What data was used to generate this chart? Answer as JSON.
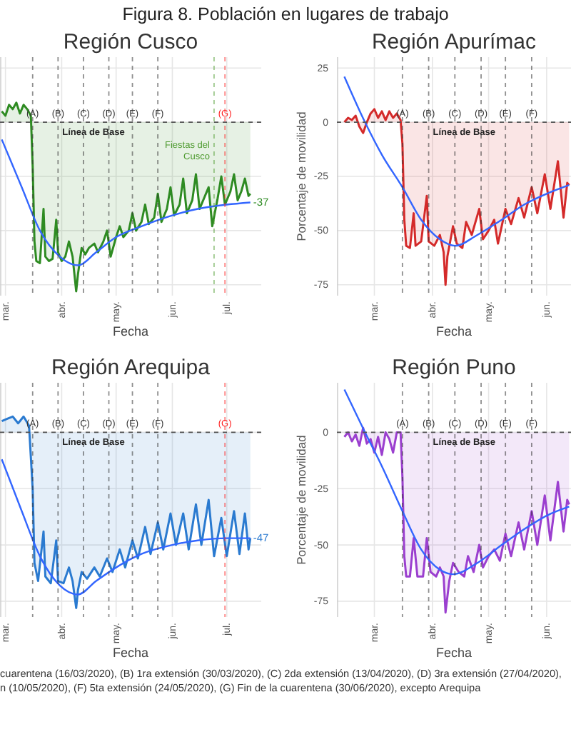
{
  "chart_data": [
    {
      "type": "other",
      "title": "Figura 8. Población en lugares de trabajo",
      "annotations": [
        "cuarentena (16/03/2020), (B) 1ra extensión (30/03/2020), (C) 2da extensión (13/04/2020), (D) 3ra extensión (27/04/2020),",
        "n (10/05/2020), (F) 5ta extensión (24/05/2020), (G) Fin de la cuarentena (30/06/2020), excepto Arequipa"
      ]
    },
    {
      "type": "area",
      "title": "Región Cusco",
      "xlabel": "Fecha",
      "xlim": [
        "2020-02-27",
        "2020-07-20"
      ],
      "ylim": [
        -80,
        30
      ],
      "yticks": [
        25,
        0,
        -25,
        -50,
        -75
      ],
      "tick_labels": "x",
      "grid": true,
      "xticks": [
        {
          "value": "2020-03-01",
          "label": "mar."
        },
        {
          "value": "2020-04-01",
          "label": "abr."
        },
        {
          "value": "2020-05-01",
          "label": "may."
        },
        {
          "value": "2020-06-01",
          "label": "jun."
        },
        {
          "value": "2020-07-01",
          "label": "jul."
        }
      ],
      "series": [
        {
          "type": "area",
          "color": "#2e8b22",
          "x": [
            "2020-02-28",
            "2020-03-01",
            "2020-03-03",
            "2020-03-05",
            "2020-03-07",
            "2020-03-09",
            "2020-03-11",
            "2020-03-13",
            "2020-03-15",
            "2020-03-16",
            "2020-03-17",
            "2020-03-18",
            "2020-03-20",
            "2020-03-22",
            "2020-03-23",
            "2020-03-25",
            "2020-03-27",
            "2020-03-29",
            "2020-03-30",
            "2020-04-01",
            "2020-04-03",
            "2020-04-05",
            "2020-04-07",
            "2020-04-09",
            "2020-04-10",
            "2020-04-12",
            "2020-04-14",
            "2020-04-16",
            "2020-04-19",
            "2020-04-21",
            "2020-04-24",
            "2020-04-26",
            "2020-04-28",
            "2020-05-01",
            "2020-05-03",
            "2020-05-05",
            "2020-05-08",
            "2020-05-10",
            "2020-05-12",
            "2020-05-15",
            "2020-05-17",
            "2020-05-19",
            "2020-05-22",
            "2020-05-24",
            "2020-05-26",
            "2020-05-29",
            "2020-05-31",
            "2020-06-02",
            "2020-06-05",
            "2020-06-07",
            "2020-06-09",
            "2020-06-12",
            "2020-06-14",
            "2020-06-16",
            "2020-06-19",
            "2020-06-21",
            "2020-06-23",
            "2020-06-26",
            "2020-06-28",
            "2020-06-30",
            "2020-07-03",
            "2020-07-05",
            "2020-07-07",
            "2020-07-09",
            "2020-07-11",
            "2020-07-13",
            "2020-07-14"
          ],
          "values": [
            5,
            3,
            8,
            6,
            9,
            4,
            8,
            6,
            3,
            -20,
            -55,
            -64,
            -65,
            -40,
            -62,
            -64,
            -63,
            -45,
            -60,
            -64,
            -62,
            -55,
            -62,
            -78,
            -70,
            -58,
            -61,
            -58,
            -56,
            -60,
            -55,
            -50,
            -62,
            -53,
            -48,
            -53,
            -50,
            -42,
            -50,
            -46,
            -38,
            -47,
            -44,
            -33,
            -46,
            -40,
            -30,
            -43,
            -38,
            -26,
            -42,
            -36,
            -24,
            -40,
            -34,
            -30,
            -48,
            -35,
            -25,
            -38,
            -32,
            -24,
            -36,
            -32,
            -26,
            -34,
            -33
          ]
        },
        {
          "type": "line",
          "color": "#3366ff",
          "x": [
            "2020-02-28",
            "2020-03-10",
            "2020-03-20",
            "2020-03-31",
            "2020-04-10",
            "2020-04-20",
            "2020-05-01",
            "2020-05-15",
            "2020-06-01",
            "2020-06-15",
            "2020-07-01",
            "2020-07-14"
          ],
          "values": [
            -8,
            -30,
            -50,
            -62,
            -66,
            -60,
            -53,
            -48,
            -43,
            -40,
            -38,
            -37
          ]
        }
      ],
      "ref_lines": [
        {
          "axis": "y",
          "value": 0,
          "label": "Línea de Base",
          "color": "#555555",
          "line_style": "dashed"
        },
        {
          "axis": "x",
          "value": "2020-03-16",
          "label": "(A)",
          "color": "#333333",
          "line_style": "dashed"
        },
        {
          "axis": "x",
          "value": "2020-03-30",
          "label": "(B)",
          "color": "#333333",
          "line_style": "dashed"
        },
        {
          "axis": "x",
          "value": "2020-04-13",
          "label": "(C)",
          "color": "#333333",
          "line_style": "dashed"
        },
        {
          "axis": "x",
          "value": "2020-04-27",
          "label": "(D)",
          "color": "#333333",
          "line_style": "dashed"
        },
        {
          "axis": "x",
          "value": "2020-05-10",
          "label": "(E)",
          "color": "#333333",
          "line_style": "dashed"
        },
        {
          "axis": "x",
          "value": "2020-05-24",
          "label": "(F)",
          "color": "#333333",
          "line_style": "dashed"
        },
        {
          "axis": "x",
          "value": "2020-06-24",
          "label": "Fiestas del Cusco",
          "color": "#4d9a2e",
          "line_style": "dashed"
        },
        {
          "axis": "x",
          "value": "2020-06-30",
          "label": "(G)",
          "color": "#ff2020",
          "line_style": "dashed"
        }
      ],
      "annotations": [
        {
          "text": "-37",
          "x": "2020-07-14",
          "y": -37
        }
      ]
    },
    {
      "type": "area",
      "title": "Región Apurímac",
      "xlabel": "Fecha",
      "ylabel": "Porcentaje de movilidad",
      "xlim": [
        "2020-02-10",
        "2020-06-14"
      ],
      "ylim": [
        -80,
        30
      ],
      "yticks": [
        25,
        0,
        -25,
        -50,
        -75
      ],
      "grid": true,
      "xticks": [
        {
          "value": "2020-03-01",
          "label": "mar."
        },
        {
          "value": "2020-04-01",
          "label": "abr."
        },
        {
          "value": "2020-05-01",
          "label": "may."
        },
        {
          "value": "2020-06-01",
          "label": "jun."
        }
      ],
      "series": [
        {
          "type": "area",
          "color": "#d42a2a",
          "x": [
            "2020-02-14",
            "2020-02-16",
            "2020-02-18",
            "2020-02-20",
            "2020-02-22",
            "2020-02-24",
            "2020-02-26",
            "2020-02-28",
            "2020-03-01",
            "2020-03-03",
            "2020-03-05",
            "2020-03-07",
            "2020-03-09",
            "2020-03-11",
            "2020-03-13",
            "2020-03-15",
            "2020-03-16",
            "2020-03-17",
            "2020-03-18",
            "2020-03-20",
            "2020-03-22",
            "2020-03-23",
            "2020-03-26",
            "2020-03-29",
            "2020-03-30",
            "2020-04-02",
            "2020-04-05",
            "2020-04-07",
            "2020-04-08",
            "2020-04-09",
            "2020-04-12",
            "2020-04-14",
            "2020-04-17",
            "2020-04-19",
            "2020-04-22",
            "2020-04-26",
            "2020-04-28",
            "2020-05-01",
            "2020-05-04",
            "2020-05-06",
            "2020-05-10",
            "2020-05-13",
            "2020-05-17",
            "2020-05-20",
            "2020-05-24",
            "2020-05-27",
            "2020-05-31",
            "2020-06-03",
            "2020-06-07",
            "2020-06-10",
            "2020-06-12",
            "2020-06-13"
          ],
          "values": [
            0,
            2,
            1,
            3,
            -2,
            -5,
            0,
            4,
            6,
            2,
            5,
            1,
            5,
            2,
            4,
            1,
            -10,
            -45,
            -57,
            -58,
            -42,
            -57,
            -55,
            -34,
            -55,
            -57,
            -52,
            -60,
            -75,
            -62,
            -48,
            -56,
            -58,
            -46,
            -52,
            -40,
            -54,
            -50,
            -45,
            -56,
            -40,
            -47,
            -35,
            -44,
            -30,
            -42,
            -24,
            -40,
            -18,
            -44,
            -28,
            -29
          ]
        },
        {
          "type": "line",
          "color": "#3366ff",
          "x": [
            "2020-02-14",
            "2020-02-25",
            "2020-03-05",
            "2020-03-16",
            "2020-03-26",
            "2020-04-05",
            "2020-04-13",
            "2020-04-25",
            "2020-05-08",
            "2020-05-20",
            "2020-06-01",
            "2020-06-13"
          ],
          "values": [
            21,
            0,
            -15,
            -30,
            -45,
            -54,
            -57,
            -52,
            -45,
            -38,
            -33,
            -29
          ]
        }
      ],
      "ref_lines": [
        {
          "axis": "y",
          "value": 0,
          "label": "Línea de Base",
          "color": "#555555",
          "line_style": "dashed"
        },
        {
          "axis": "x",
          "value": "2020-03-16",
          "label": "(A)",
          "color": "#333333",
          "line_style": "dashed"
        },
        {
          "axis": "x",
          "value": "2020-03-30",
          "label": "(B)",
          "color": "#333333",
          "line_style": "dashed"
        },
        {
          "axis": "x",
          "value": "2020-04-13",
          "label": "(C)",
          "color": "#333333",
          "line_style": "dashed"
        },
        {
          "axis": "x",
          "value": "2020-04-27",
          "label": "(D)",
          "color": "#333333",
          "line_style": "dashed"
        },
        {
          "axis": "x",
          "value": "2020-05-10",
          "label": "(E)",
          "color": "#333333",
          "line_style": "dashed"
        },
        {
          "axis": "x",
          "value": "2020-05-24",
          "label": "(F)",
          "color": "#333333",
          "line_style": "dashed"
        }
      ]
    },
    {
      "type": "area",
      "title": "Región Arequipa",
      "xlabel": "Fecha",
      "xlim": [
        "2020-02-27",
        "2020-07-20"
      ],
      "ylim": [
        -82,
        22
      ],
      "yticks": [
        0,
        -25,
        -50,
        -75
      ],
      "tick_labels": "x",
      "grid": true,
      "xticks": [
        {
          "value": "2020-03-01",
          "label": "mar."
        },
        {
          "value": "2020-04-01",
          "label": "abr."
        },
        {
          "value": "2020-05-01",
          "label": "may."
        },
        {
          "value": "2020-06-01",
          "label": "jun."
        },
        {
          "value": "2020-07-01",
          "label": "jul."
        }
      ],
      "series": [
        {
          "type": "area",
          "color": "#2a7ad0",
          "x": [
            "2020-02-28",
            "2020-03-02",
            "2020-03-05",
            "2020-03-08",
            "2020-03-11",
            "2020-03-14",
            "2020-03-16",
            "2020-03-17",
            "2020-03-19",
            "2020-03-22",
            "2020-03-23",
            "2020-03-26",
            "2020-03-29",
            "2020-03-30",
            "2020-04-02",
            "2020-04-05",
            "2020-04-07",
            "2020-04-09",
            "2020-04-10",
            "2020-04-12",
            "2020-04-15",
            "2020-04-19",
            "2020-04-22",
            "2020-04-26",
            "2020-04-29",
            "2020-05-03",
            "2020-05-06",
            "2020-05-10",
            "2020-05-13",
            "2020-05-17",
            "2020-05-20",
            "2020-05-24",
            "2020-05-27",
            "2020-05-31",
            "2020-06-03",
            "2020-06-07",
            "2020-06-10",
            "2020-06-14",
            "2020-06-17",
            "2020-06-21",
            "2020-06-24",
            "2020-06-28",
            "2020-07-01",
            "2020-07-05",
            "2020-07-08",
            "2020-07-11",
            "2020-07-13",
            "2020-07-14"
          ],
          "values": [
            5,
            6,
            7,
            4,
            7,
            3,
            -25,
            -58,
            -66,
            -44,
            -64,
            -67,
            -48,
            -66,
            -67,
            -60,
            -66,
            -78,
            -70,
            -62,
            -65,
            -60,
            -64,
            -56,
            -62,
            -52,
            -60,
            -48,
            -56,
            -42,
            -54,
            -40,
            -52,
            -36,
            -50,
            -36,
            -52,
            -32,
            -50,
            -30,
            -55,
            -38,
            -55,
            -35,
            -54,
            -36,
            -52,
            -47
          ]
        },
        {
          "type": "line",
          "color": "#3366ff",
          "x": [
            "2020-02-28",
            "2020-03-10",
            "2020-03-20",
            "2020-03-31",
            "2020-04-10",
            "2020-04-20",
            "2020-05-01",
            "2020-05-15",
            "2020-06-01",
            "2020-06-15",
            "2020-07-01",
            "2020-07-14"
          ],
          "values": [
            -12,
            -35,
            -55,
            -68,
            -72,
            -66,
            -60,
            -54,
            -50,
            -48,
            -47,
            -47
          ]
        }
      ],
      "ref_lines": [
        {
          "axis": "y",
          "value": 0,
          "label": "Línea de Base",
          "color": "#555555",
          "line_style": "dashed"
        },
        {
          "axis": "x",
          "value": "2020-03-16",
          "label": "(A)",
          "color": "#333333",
          "line_style": "dashed"
        },
        {
          "axis": "x",
          "value": "2020-03-30",
          "label": "(B)",
          "color": "#333333",
          "line_style": "dashed"
        },
        {
          "axis": "x",
          "value": "2020-04-13",
          "label": "(C)",
          "color": "#333333",
          "line_style": "dashed"
        },
        {
          "axis": "x",
          "value": "2020-04-27",
          "label": "(D)",
          "color": "#333333",
          "line_style": "dashed"
        },
        {
          "axis": "x",
          "value": "2020-05-10",
          "label": "(E)",
          "color": "#333333",
          "line_style": "dashed"
        },
        {
          "axis": "x",
          "value": "2020-05-24",
          "label": "(F)",
          "color": "#333333",
          "line_style": "dashed"
        },
        {
          "axis": "x",
          "value": "2020-06-30",
          "label": "(G)",
          "color": "#ff2020",
          "line_style": "dashed"
        }
      ],
      "annotations": [
        {
          "text": "-47",
          "x": "2020-07-14",
          "y": -47
        }
      ]
    },
    {
      "type": "area",
      "title": "Región Puno",
      "xlabel": "Fecha",
      "ylabel": "Porcentaje de movilidad",
      "xlim": [
        "2020-02-10",
        "2020-06-14"
      ],
      "ylim": [
        -82,
        22
      ],
      "yticks": [
        0,
        -25,
        -50,
        -75
      ],
      "grid": true,
      "xticks": [
        {
          "value": "2020-03-01",
          "label": "mar."
        },
        {
          "value": "2020-04-01",
          "label": "abr."
        },
        {
          "value": "2020-05-01",
          "label": "may."
        },
        {
          "value": "2020-06-01",
          "label": "jun."
        }
      ],
      "series": [
        {
          "type": "area",
          "color": "#9b3fcf",
          "x": [
            "2020-02-14",
            "2020-02-16",
            "2020-02-18",
            "2020-02-20",
            "2020-02-22",
            "2020-02-24",
            "2020-02-26",
            "2020-02-28",
            "2020-03-01",
            "2020-03-03",
            "2020-03-05",
            "2020-03-07",
            "2020-03-09",
            "2020-03-11",
            "2020-03-13",
            "2020-03-15",
            "2020-03-16",
            "2020-03-17",
            "2020-03-18",
            "2020-03-20",
            "2020-03-22",
            "2020-03-24",
            "2020-03-27",
            "2020-03-29",
            "2020-03-31",
            "2020-04-03",
            "2020-04-05",
            "2020-04-07",
            "2020-04-08",
            "2020-04-10",
            "2020-04-12",
            "2020-04-15",
            "2020-04-18",
            "2020-04-20",
            "2020-04-23",
            "2020-04-26",
            "2020-04-28",
            "2020-05-01",
            "2020-05-04",
            "2020-05-07",
            "2020-05-10",
            "2020-05-13",
            "2020-05-17",
            "2020-05-20",
            "2020-05-24",
            "2020-05-27",
            "2020-05-31",
            "2020-06-03",
            "2020-06-07",
            "2020-06-10",
            "2020-06-12",
            "2020-06-13"
          ],
          "values": [
            -2,
            0,
            -4,
            -1,
            -6,
            2,
            -5,
            -3,
            -9,
            -2,
            -10,
            0,
            -3,
            -9,
            0,
            0,
            -20,
            -55,
            -64,
            -64,
            -47,
            -64,
            -64,
            -47,
            -62,
            -64,
            -60,
            -64,
            -80,
            -66,
            -58,
            -62,
            -64,
            -55,
            -62,
            -50,
            -60,
            -55,
            -52,
            -57,
            -45,
            -55,
            -40,
            -52,
            -35,
            -50,
            -28,
            -48,
            -22,
            -44,
            -30,
            -32
          ]
        },
        {
          "type": "line",
          "color": "#3366ff",
          "x": [
            "2020-02-14",
            "2020-02-25",
            "2020-03-05",
            "2020-03-16",
            "2020-03-26",
            "2020-04-05",
            "2020-04-12",
            "2020-04-25",
            "2020-05-08",
            "2020-05-20",
            "2020-06-01",
            "2020-06-13"
          ],
          "values": [
            19,
            0,
            -15,
            -35,
            -52,
            -61,
            -63,
            -58,
            -50,
            -43,
            -37,
            -33
          ]
        }
      ],
      "ref_lines": [
        {
          "axis": "y",
          "value": 0,
          "label": "Línea de Base",
          "color": "#555555",
          "line_style": "dashed"
        },
        {
          "axis": "x",
          "value": "2020-03-16",
          "label": "(A)",
          "color": "#333333",
          "line_style": "dashed"
        },
        {
          "axis": "x",
          "value": "2020-03-30",
          "label": "(B)",
          "color": "#333333",
          "line_style": "dashed"
        },
        {
          "axis": "x",
          "value": "2020-04-13",
          "label": "(C)",
          "color": "#333333",
          "line_style": "dashed"
        },
        {
          "axis": "x",
          "value": "2020-04-27",
          "label": "(D)",
          "color": "#333333",
          "line_style": "dashed"
        },
        {
          "axis": "x",
          "value": "2020-05-10",
          "label": "(E)",
          "color": "#333333",
          "line_style": "dashed"
        },
        {
          "axis": "x",
          "value": "2020-05-24",
          "label": "(F)",
          "color": "#333333",
          "line_style": "dashed"
        }
      ]
    }
  ]
}
